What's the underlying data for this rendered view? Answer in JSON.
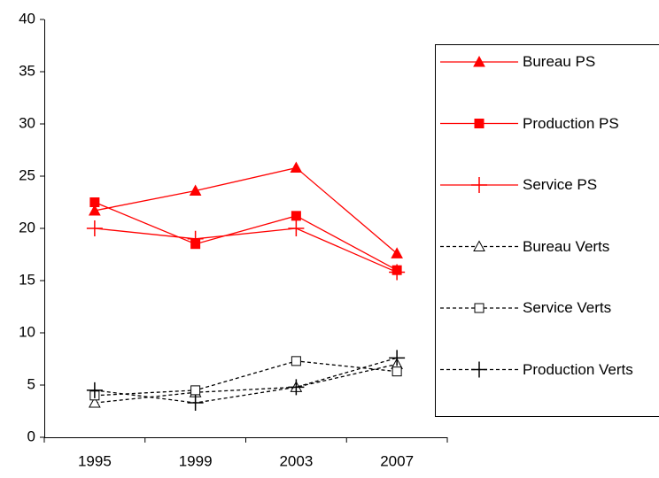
{
  "chart_data": {
    "type": "line",
    "categories": [
      "1995",
      "1999",
      "2003",
      "2007"
    ],
    "ylim": [
      0,
      40
    ],
    "yticks": [
      0,
      5,
      10,
      15,
      20,
      25,
      30,
      35,
      40
    ],
    "legend": "right",
    "series": [
      {
        "name": "Bureau PS",
        "color": "#ff0000",
        "marker": "triangle",
        "filled": true,
        "dash": "solid",
        "values": [
          21.7,
          23.6,
          25.8,
          17.6
        ]
      },
      {
        "name": "Production PS",
        "color": "#ff0000",
        "marker": "square",
        "filled": true,
        "dash": "solid",
        "values": [
          22.5,
          18.5,
          21.2,
          16.0
        ]
      },
      {
        "name": "Service PS",
        "color": "#ff0000",
        "marker": "plus",
        "filled": true,
        "dash": "solid",
        "values": [
          20.0,
          19.0,
          20.0,
          15.8
        ]
      },
      {
        "name": "Bureau Verts",
        "color": "#000000",
        "marker": "triangle",
        "filled": false,
        "dash": "dotted",
        "values": [
          3.3,
          4.3,
          4.8,
          7.0
        ]
      },
      {
        "name": "Service Verts",
        "color": "#000000",
        "marker": "square",
        "filled": false,
        "dash": "dotted",
        "values": [
          4.0,
          4.5,
          7.3,
          6.3
        ]
      },
      {
        "name": "Production Verts",
        "color": "#000000",
        "marker": "plus",
        "filled": false,
        "dash": "dotted",
        "values": [
          4.5,
          3.3,
          4.8,
          7.6
        ]
      }
    ]
  }
}
